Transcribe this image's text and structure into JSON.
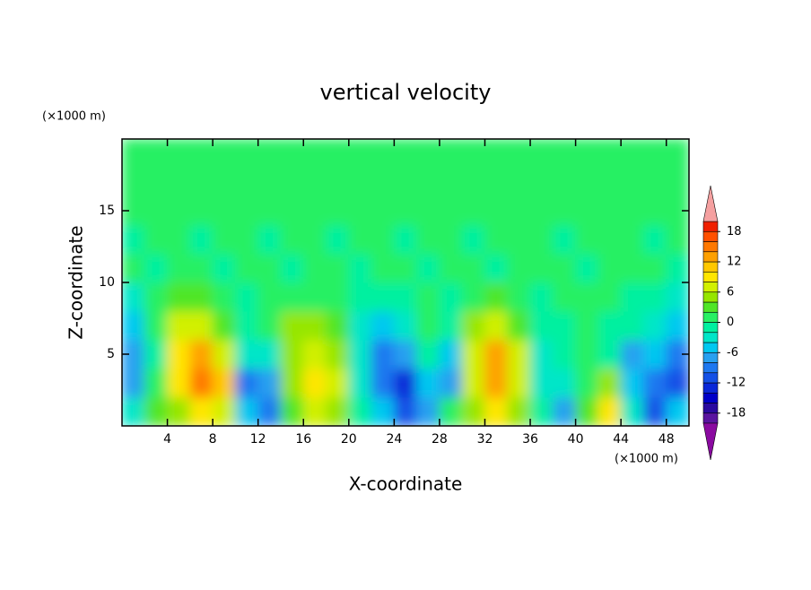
{
  "chart_data": {
    "type": "contour",
    "title": "vertical velocity",
    "x_label": "X-coordinate",
    "y_label": "Z-coordinate",
    "x_unit": "(×1000 m)",
    "y_unit": "(×1000 m)",
    "xlim": [
      0,
      50
    ],
    "ylim": [
      0,
      20
    ],
    "xticks": [
      4,
      8,
      12,
      16,
      20,
      24,
      28,
      32,
      36,
      40,
      44,
      48
    ],
    "yticks": [
      5,
      10,
      15
    ],
    "x": [
      1,
      3,
      5,
      7,
      9,
      11,
      13,
      15,
      17,
      19,
      21,
      23,
      25,
      27,
      29,
      31,
      33,
      35,
      37,
      39,
      41,
      43,
      45,
      47,
      49
    ],
    "y": [
      1,
      3,
      5,
      7,
      9,
      11,
      13,
      15,
      17,
      19
    ],
    "z": [
      [
        -3,
        2,
        4,
        8,
        6,
        -6,
        -10,
        3,
        6,
        5,
        -1,
        -6,
        -12,
        -8,
        1,
        4,
        8,
        4,
        -2,
        -7,
        2,
        8,
        -4,
        -12,
        -6
      ],
      [
        -7,
        0,
        8,
        14,
        10,
        -10,
        -8,
        4,
        9,
        7,
        -3,
        -10,
        -14,
        -6,
        -7,
        6,
        13,
        6,
        -3,
        -4,
        0,
        5,
        -6,
        -10,
        -11
      ],
      [
        -8,
        -2,
        9,
        12,
        6,
        -4,
        -3,
        5,
        7,
        5,
        -4,
        -9,
        -7,
        -2,
        -5,
        6,
        12,
        6,
        -3,
        -2,
        0,
        -1,
        -8,
        -5,
        -10
      ],
      [
        -5,
        0,
        7,
        7,
        3,
        -2,
        1,
        4,
        4,
        2,
        -3,
        -5,
        -3,
        0,
        -2,
        4,
        6,
        3,
        -2,
        -1,
        0,
        -1,
        -2,
        -3,
        -6
      ],
      [
        -3,
        0,
        2,
        2,
        0,
        -1,
        0,
        1,
        1,
        0,
        -1,
        -2,
        -1,
        0,
        -1,
        1,
        2,
        1,
        -1,
        0,
        0,
        0,
        -1,
        -1,
        -3
      ],
      [
        1,
        -1,
        0,
        1,
        -1,
        0,
        1,
        -1,
        0,
        1,
        -1,
        0,
        1,
        -1,
        0,
        1,
        -1,
        0,
        1,
        1,
        -1,
        1,
        0,
        1,
        -1
      ],
      [
        -1,
        1,
        0,
        -1,
        1,
        0,
        -1,
        1,
        0,
        -1,
        1,
        0,
        -1,
        1,
        0,
        -1,
        1,
        0,
        1,
        -1,
        1,
        0,
        1,
        -1,
        0
      ],
      [
        0,
        1,
        1,
        0,
        1,
        0,
        1,
        1,
        0,
        1,
        1,
        1,
        0,
        1,
        1,
        1,
        0,
        1,
        0,
        1,
        1,
        0,
        1,
        1,
        0
      ],
      [
        1,
        0,
        1,
        1,
        0,
        1,
        1,
        1,
        0,
        1,
        1,
        0,
        1,
        1,
        1,
        0,
        1,
        1,
        1,
        1,
        0,
        1,
        1,
        0,
        1
      ],
      [
        1,
        1,
        0,
        1,
        1,
        0,
        1,
        0,
        0,
        1,
        1,
        1,
        0,
        1,
        1,
        1,
        0,
        1,
        1,
        0,
        1,
        1,
        1,
        1,
        1
      ]
    ],
    "levels": [
      -20,
      -18,
      -16,
      -14,
      -12,
      -10,
      -8,
      -6,
      -4,
      -2,
      0,
      2,
      4,
      6,
      8,
      10,
      12,
      14,
      16,
      18,
      20
    ],
    "colors": [
      "#5a14a0",
      "#2a0aa0",
      "#0000c8",
      "#0a28d8",
      "#1450e6",
      "#1e78f0",
      "#28a0f0",
      "#00c8f0",
      "#00e6c8",
      "#00f0a0",
      "#28f064",
      "#50e628",
      "#96e600",
      "#d2f000",
      "#ffe600",
      "#ffc800",
      "#ffa000",
      "#ff7800",
      "#ff5000",
      "#f02000"
    ],
    "under_color": "#8a0aa0",
    "over_color": "#f5a0a0",
    "colorbar_ticks": [
      -18,
      -12,
      -6,
      0,
      6,
      12,
      18
    ]
  }
}
